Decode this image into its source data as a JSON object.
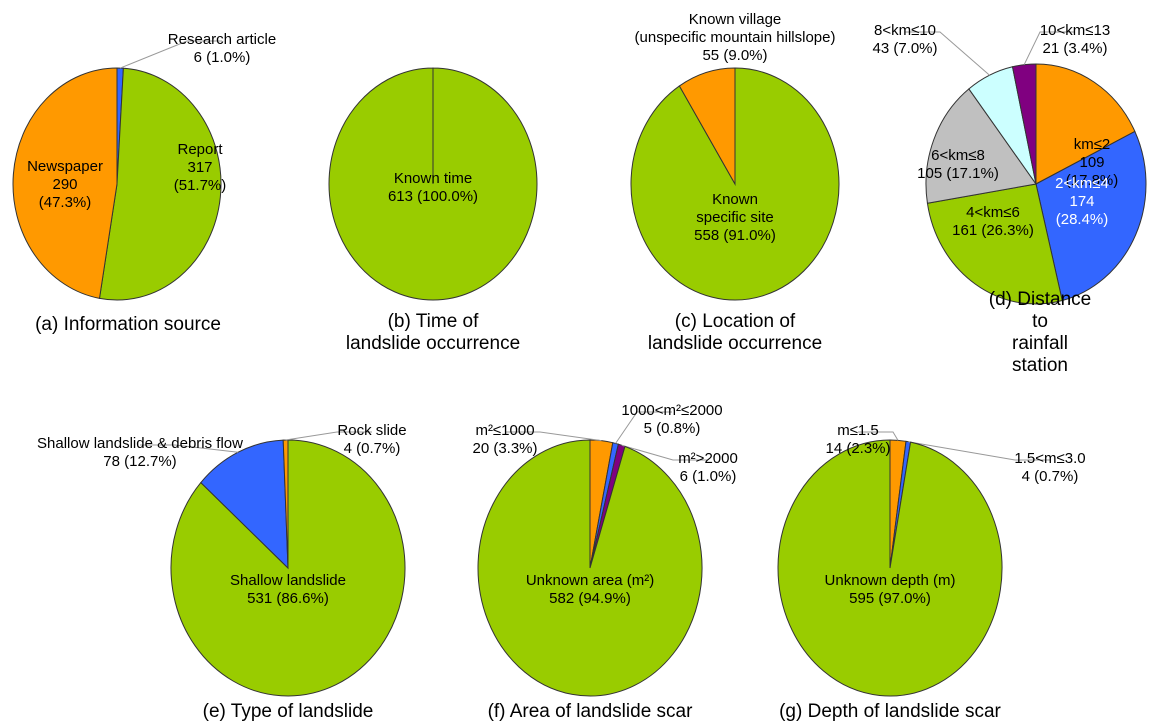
{
  "chart_data": [
    {
      "type": "pie",
      "title": "(a) Information source",
      "categories": [
        "Research article",
        "Report",
        "Newspaper"
      ],
      "values": [
        6,
        317,
        290
      ],
      "value_labels": [
        "6 (1.0%)",
        "317\n(51.7%)",
        "290\n(47.3%)"
      ],
      "colors": [
        "#3366ff",
        "#99cc00",
        "#ff9900"
      ]
    },
    {
      "type": "pie",
      "title": "(b) Time of\nlandslide occurrence",
      "categories": [
        "Known time"
      ],
      "values": [
        613
      ],
      "value_labels": [
        "613 (100.0%)"
      ],
      "colors": [
        "#99cc00"
      ]
    },
    {
      "type": "pie",
      "title": "(c) Location of\nlandslide occurrence",
      "categories": [
        "Known\nspecific site",
        "Known village\n(unspecific mountain hillslope)"
      ],
      "values": [
        558,
        55
      ],
      "value_labels": [
        "558 (91.0%)",
        "55 (9.0%)"
      ],
      "colors": [
        "#99cc00",
        "#ff9900"
      ]
    },
    {
      "type": "pie",
      "title": "(d) Distance to\nrainfall station",
      "categories": [
        "km≤2",
        "2<km≤4",
        "4<km≤6",
        "6<km≤8",
        "8<km≤10",
        "10<km≤13"
      ],
      "values": [
        109,
        174,
        161,
        105,
        43,
        21
      ],
      "value_labels": [
        "109 (17.8%)",
        "174 (28.4%)",
        "161 (26.3%)",
        "105 (17.1%)",
        "43 (7.0%)",
        "21 (3.4%)"
      ],
      "colors": [
        "#ff9900",
        "#3366ff",
        "#99cc00",
        "#c0c0c0",
        "#ccffff",
        "#800080"
      ]
    },
    {
      "type": "pie",
      "title": "(e) Type of landslide",
      "categories": [
        "Shallow landslide",
        "Shallow landslide & debris flow",
        "Rock slide"
      ],
      "values": [
        531,
        78,
        4
      ],
      "value_labels": [
        "531 (86.6%)",
        "78 (12.7%)",
        "4 (0.7%)"
      ],
      "colors": [
        "#99cc00",
        "#3366ff",
        "#ff9900"
      ]
    },
    {
      "type": "pie",
      "title": "(f) Area of landslide scar",
      "categories": [
        "m²≤1000",
        "1000<m²≤2000",
        "m²>2000",
        "Unknown area (m²)"
      ],
      "values": [
        20,
        5,
        6,
        582
      ],
      "value_labels": [
        "20 (3.3%)",
        "5 (0.8%)",
        "6 (1.0%)",
        "582 (94.9%)"
      ],
      "colors": [
        "#ff9900",
        "#3366ff",
        "#800080",
        "#99cc00"
      ]
    },
    {
      "type": "pie",
      "title": "(g) Depth of landslide scar",
      "categories": [
        "m≤1.5",
        "1.5<m≤3.0",
        "Unknown depth (m)"
      ],
      "values": [
        14,
        4,
        595
      ],
      "value_labels": [
        "14 (2.3%)",
        "4 (0.7%)",
        "595 (97.0%)"
      ],
      "colors": [
        "#ff9900",
        "#3366ff",
        "#99cc00"
      ]
    }
  ]
}
